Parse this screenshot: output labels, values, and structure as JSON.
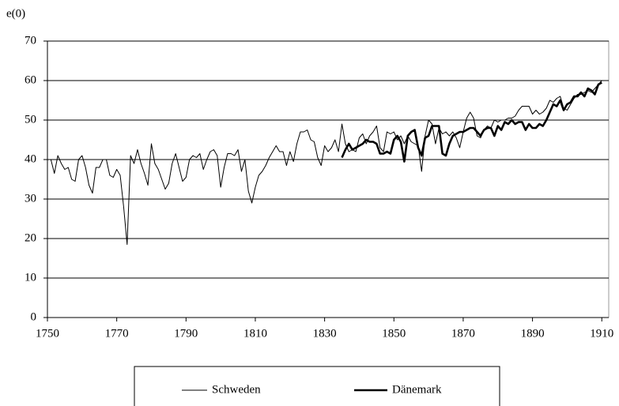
{
  "chart_data": {
    "type": "line",
    "y_label": "e(0)",
    "xlim": [
      1750,
      1912
    ],
    "xticks": [
      1750,
      1770,
      1790,
      1810,
      1830,
      1850,
      1870,
      1890,
      1910
    ],
    "ylim": [
      0,
      70
    ],
    "yticks": [
      0,
      10,
      20,
      30,
      40,
      50,
      60,
      70
    ],
    "grid": true,
    "legend": "bottom",
    "series": [
      {
        "name": "Schweden",
        "color": "#000000",
        "width": 1,
        "x": [
          1751,
          1752,
          1753,
          1754,
          1755,
          1756,
          1757,
          1758,
          1759,
          1760,
          1761,
          1762,
          1763,
          1764,
          1765,
          1766,
          1767,
          1768,
          1769,
          1770,
          1771,
          1772,
          1773,
          1774,
          1775,
          1776,
          1777,
          1778,
          1779,
          1780,
          1781,
          1782,
          1783,
          1784,
          1785,
          1786,
          1787,
          1788,
          1789,
          1790,
          1791,
          1792,
          1793,
          1794,
          1795,
          1796,
          1797,
          1798,
          1799,
          1800,
          1801,
          1802,
          1803,
          1804,
          1805,
          1806,
          1807,
          1808,
          1809,
          1810,
          1811,
          1812,
          1813,
          1814,
          1815,
          1816,
          1817,
          1818,
          1819,
          1820,
          1821,
          1822,
          1823,
          1824,
          1825,
          1826,
          1827,
          1828,
          1829,
          1830,
          1831,
          1832,
          1833,
          1834,
          1835,
          1836,
          1837,
          1838,
          1839,
          1840,
          1841,
          1842,
          1843,
          1844,
          1845,
          1846,
          1847,
          1848,
          1849,
          1850,
          1851,
          1852,
          1853,
          1854,
          1855,
          1856,
          1857,
          1858,
          1859,
          1860,
          1861,
          1862,
          1863,
          1864,
          1865,
          1866,
          1867,
          1868,
          1869,
          1870,
          1871,
          1872,
          1873,
          1874,
          1875,
          1876,
          1877,
          1878,
          1879,
          1880,
          1881,
          1882,
          1883,
          1884,
          1885,
          1886,
          1887,
          1888,
          1889,
          1890,
          1891,
          1892,
          1893,
          1894,
          1895,
          1896,
          1897,
          1898,
          1899,
          1900,
          1901,
          1902,
          1903,
          1904,
          1905,
          1906,
          1907,
          1908,
          1909,
          1910
        ],
        "values": [
          40,
          36.5,
          41,
          39,
          37.5,
          38,
          35,
          34.5,
          40,
          41,
          38,
          33.5,
          31.5,
          38,
          38,
          40,
          40,
          36,
          35.5,
          37.5,
          36,
          28,
          18.5,
          41,
          39,
          42.5,
          39,
          36.5,
          33.5,
          44,
          39,
          37.5,
          35,
          32.5,
          34,
          39,
          41.5,
          38,
          34.5,
          35.5,
          40,
          41,
          40.5,
          41.5,
          37.5,
          40,
          42,
          42.5,
          41,
          33,
          38,
          41.5,
          41.5,
          41,
          42.5,
          37,
          40,
          32,
          29,
          33,
          36,
          37,
          38.5,
          40.5,
          42,
          43.5,
          42,
          42,
          38.5,
          42,
          39.5,
          44,
          47,
          47,
          47.5,
          45,
          44.5,
          40.5,
          38.5,
          43.5,
          42,
          43,
          45,
          42,
          49,
          44,
          42,
          42.5,
          42,
          45.5,
          46.5,
          44,
          46,
          47,
          48.5,
          43,
          42,
          47,
          46.5,
          47,
          45,
          46,
          44,
          46,
          44.5,
          44,
          43.5,
          37,
          46,
          50,
          49,
          44,
          48,
          46.5,
          47,
          46,
          47,
          45.5,
          43,
          47,
          50.5,
          52,
          50.5,
          46,
          45.5,
          47.5,
          48.5,
          48,
          50,
          49.5,
          50,
          50,
          50.5,
          50.5,
          51,
          52.5,
          53.5,
          53.5,
          53.5,
          51.5,
          52.5,
          51.5,
          52,
          53,
          55,
          54.5,
          55.5,
          56,
          53,
          52.5,
          54,
          55.5,
          56.5,
          56.5,
          57,
          57.5,
          57,
          58,
          59,
          60
        ]
      },
      {
        "name": "Dänemark",
        "color": "#000000",
        "width": 2.6,
        "x": [
          1835,
          1836,
          1837,
          1838,
          1839,
          1840,
          1841,
          1842,
          1843,
          1844,
          1845,
          1846,
          1847,
          1848,
          1849,
          1850,
          1851,
          1852,
          1853,
          1854,
          1855,
          1856,
          1857,
          1858,
          1859,
          1860,
          1861,
          1862,
          1863,
          1864,
          1865,
          1866,
          1867,
          1868,
          1869,
          1870,
          1871,
          1872,
          1873,
          1874,
          1875,
          1876,
          1877,
          1878,
          1879,
          1880,
          1881,
          1882,
          1883,
          1884,
          1885,
          1886,
          1887,
          1888,
          1889,
          1890,
          1891,
          1892,
          1893,
          1894,
          1895,
          1896,
          1897,
          1898,
          1899,
          1900,
          1901,
          1902,
          1903,
          1904,
          1905,
          1906,
          1907,
          1908,
          1909,
          1910
        ],
        "values": [
          40.5,
          42.5,
          44,
          42.5,
          43,
          43.5,
          44,
          45,
          44.5,
          44.5,
          44,
          41.5,
          41.5,
          42,
          41.5,
          45,
          46,
          44.5,
          39.5,
          46,
          47,
          47.5,
          43,
          41,
          45.5,
          46,
          48.5,
          48.5,
          48.5,
          41.5,
          41,
          44,
          46,
          46.5,
          47,
          47,
          47.5,
          48,
          48,
          47,
          46,
          47.5,
          48,
          48,
          46,
          48.5,
          47.5,
          49.5,
          49,
          50,
          49,
          49.5,
          49.5,
          47.5,
          49,
          48,
          48,
          49,
          48.5,
          50,
          52,
          54,
          53.5,
          55,
          52.5,
          54,
          54.5,
          56,
          56,
          57,
          56,
          58,
          57.5,
          56.5,
          59,
          59.5
        ]
      }
    ]
  }
}
